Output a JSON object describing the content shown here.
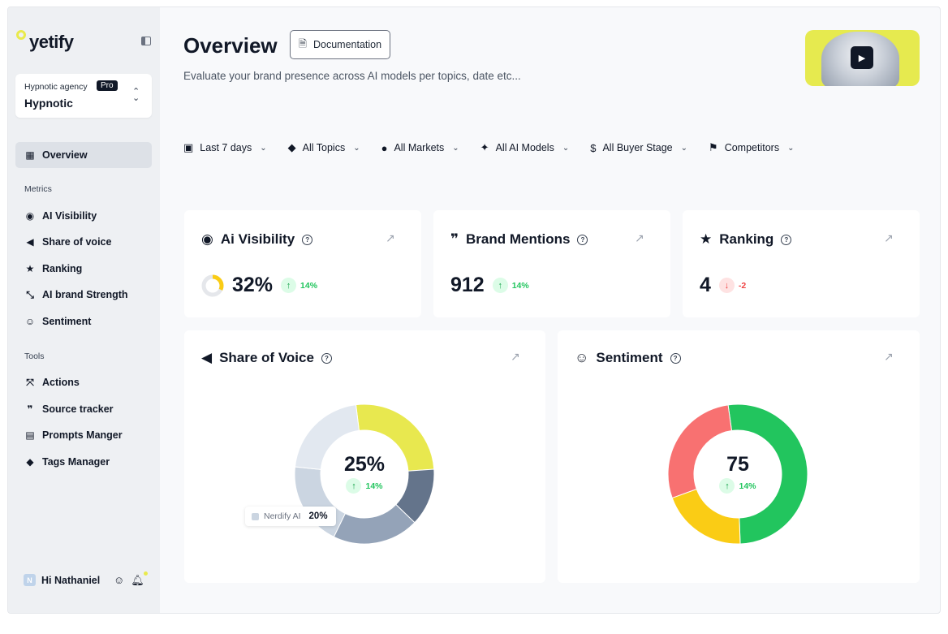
{
  "brand": {
    "logo": "yetify",
    "accent": "#e9ea4c"
  },
  "workspace": {
    "agency": "Hypnotic agency",
    "plan": "Pro",
    "name": "Hypnotic"
  },
  "nav": {
    "overview": "Overview",
    "metrics_title": "Metrics",
    "metrics": [
      "AI Visibility",
      "Share of voice",
      "Ranking",
      "AI brand Strength",
      "Sentiment"
    ],
    "tools_title": "Tools",
    "tools": [
      "Actions",
      "Source tracker",
      "Prompts Manger",
      "Tags Manager"
    ]
  },
  "user": {
    "initial": "N",
    "greeting": "Hi Nathaniel"
  },
  "header": {
    "title": "Overview",
    "doc_button": "Documentation",
    "subtitle": "Evaluate your brand presence across AI models per topics, date etc..."
  },
  "filters": [
    "Last 7 days",
    "All Topics",
    "All Markets",
    "All AI Models",
    "All Buyer Stage",
    "Competitors"
  ],
  "cards": {
    "visibility": {
      "title": "Ai Visibility",
      "value": "32%",
      "progress": 0.32,
      "delta": "14%",
      "trend": "up"
    },
    "mentions": {
      "title": "Brand Mentions",
      "value": "912",
      "delta": "14%",
      "trend": "up"
    },
    "ranking": {
      "title": "Ranking",
      "value": "4",
      "delta": "-2",
      "trend": "down"
    }
  },
  "share_of_voice": {
    "title": "Share of Voice",
    "center_value": "25%",
    "delta": "14%",
    "tooltip_label": "Nerdify AI",
    "tooltip_value": "20%",
    "segment_colors": [
      "#e8e84f",
      "#64748b",
      "#94a3b8",
      "#cbd5e1",
      "#e2e8f0"
    ]
  },
  "sentiment": {
    "title": "Sentiment",
    "center_value": "75",
    "delta": "14%",
    "segment_colors": [
      "#22c55e",
      "#facc15",
      "#f87171"
    ]
  }
}
